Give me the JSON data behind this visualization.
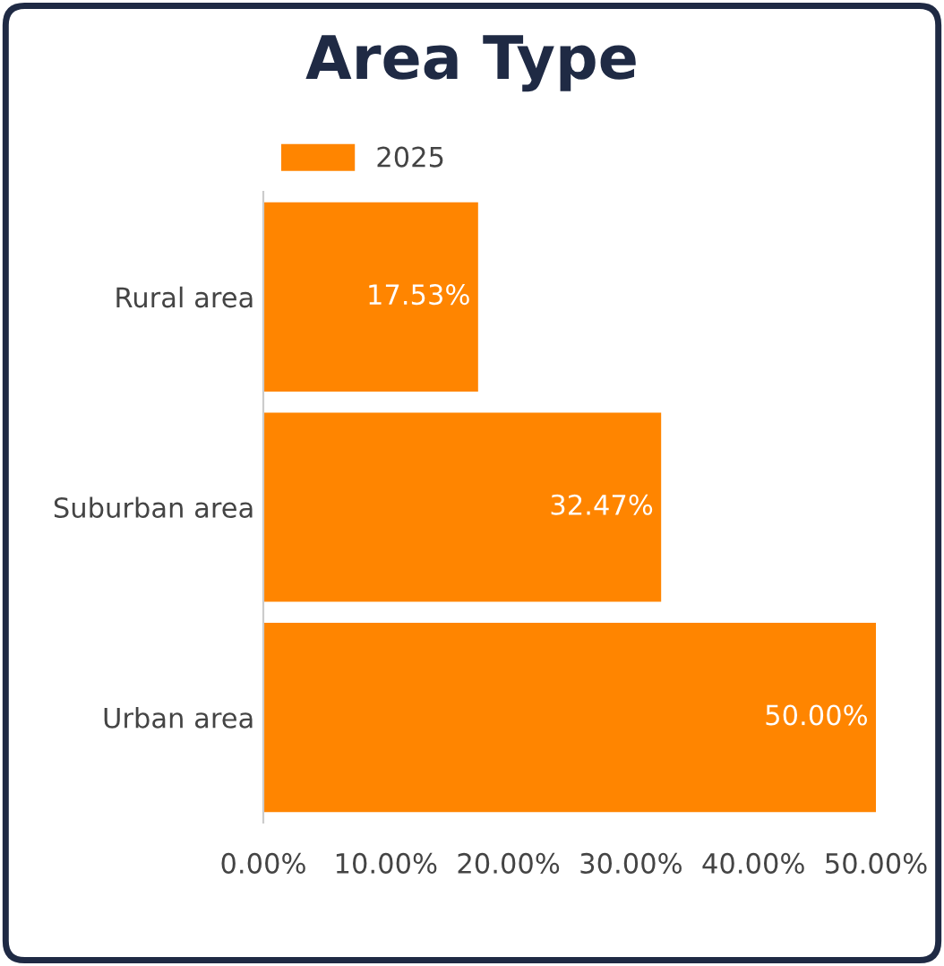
{
  "chart_data": {
    "type": "bar",
    "orientation": "horizontal",
    "title": "Area Type",
    "categories": [
      "Rural area",
      "Suburban area",
      "Urban area"
    ],
    "series": [
      {
        "name": "2025",
        "color": "#ff8500",
        "values": [
          17.53,
          32.47,
          50.0
        ],
        "value_labels": [
          "17.53%",
          "32.47%",
          "50.00%"
        ]
      }
    ],
    "xlim": [
      0,
      50
    ],
    "xticks": [
      {
        "value": 0,
        "label": "0.00%"
      },
      {
        "value": 10,
        "label": "10.00%"
      },
      {
        "value": 20,
        "label": "20.00%"
      },
      {
        "value": 30,
        "label": "30.00%"
      },
      {
        "value": 40,
        "label": "40.00%"
      },
      {
        "value": 50,
        "label": "50.00%"
      }
    ],
    "grid": false,
    "legend": "top left"
  }
}
